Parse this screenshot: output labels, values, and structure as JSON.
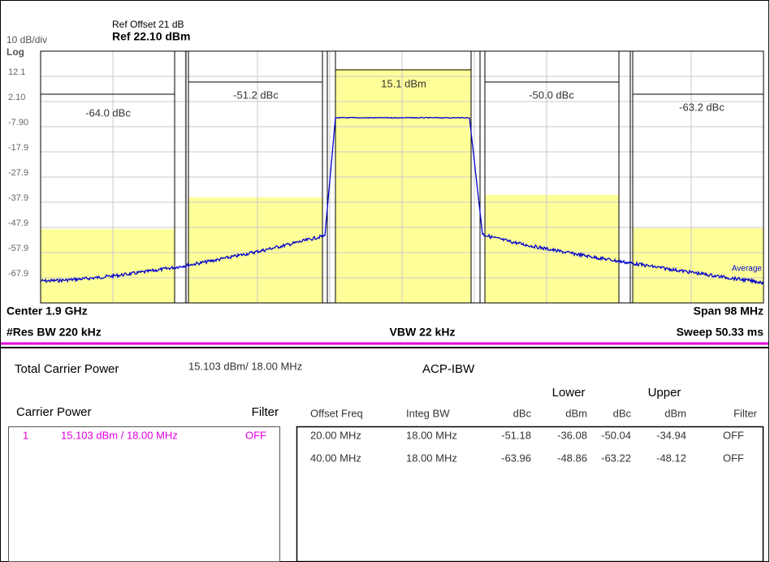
{
  "header": {
    "ref_offset": "Ref Offset 21 dB",
    "ref_level": "Ref 22.10 dBm",
    "scale": "10 dB/div",
    "scale_type": "Log"
  },
  "y_labels": [
    "12.1",
    "2.10",
    "-7.90",
    "-17.9",
    "-27.9",
    "-37.9",
    "-47.9",
    "-57.9",
    "-67.9"
  ],
  "bands": [
    "-64.0 dBc",
    "-51.2 dBc",
    "15.1 dBm",
    "-50.0 dBc",
    "-63.2 dBc"
  ],
  "trace_label": "Average",
  "footer": {
    "center": "Center  1.9 GHz",
    "span": "Span 98 MHz",
    "res_bw": "#Res BW  220 kHz",
    "vbw": "VBW  22 kHz",
    "sweep": "Sweep  50.33 ms"
  },
  "results": {
    "total_label": "Total Carrier Power",
    "total_value": "15.103 dBm/ 18.00 MHz",
    "acp_title": "ACP-IBW",
    "carrier_header": "Carrier Power",
    "filter_header": "Filter",
    "carrier_rows": [
      [
        "1",
        "15.103 dBm /  18.00 MHz",
        "OFF"
      ]
    ],
    "groups": [
      "Lower",
      "Upper"
    ],
    "columns": [
      "Offset Freq",
      "Integ BW",
      "dBc",
      "dBm",
      "dBc",
      "dBm",
      "Filter"
    ],
    "rows": [
      [
        "20.00 MHz",
        "18.00 MHz",
        "-51.18",
        "-36.08",
        "-50.04",
        "-34.94",
        "OFF"
      ],
      [
        "40.00 MHz",
        "18.00 MHz",
        "-63.96",
        "-48.86",
        "-63.22",
        "-48.12",
        "OFF"
      ]
    ]
  }
}
